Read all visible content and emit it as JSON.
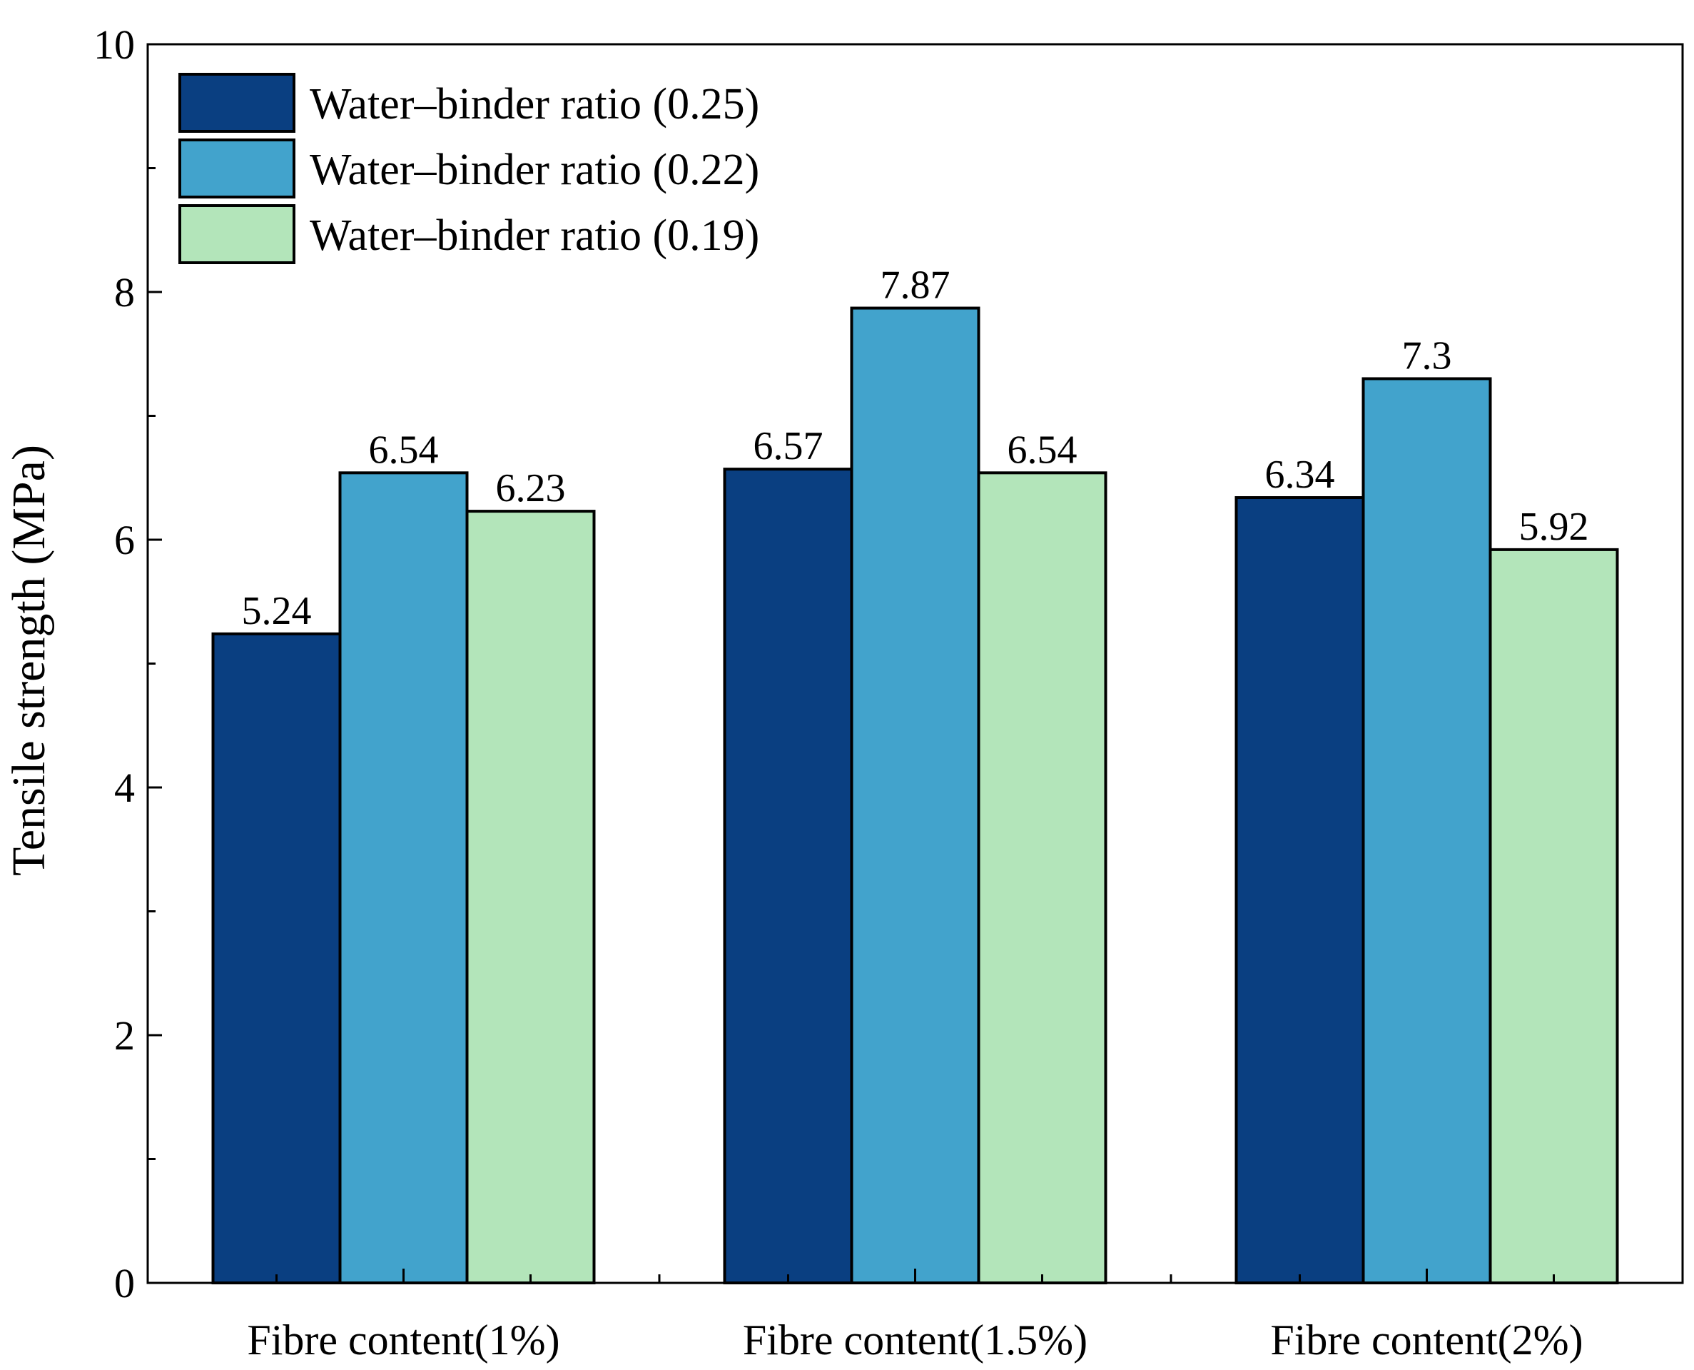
{
  "chart_data": {
    "type": "bar",
    "title": "",
    "xlabel": "",
    "ylabel": "Tensile strength (MPa)",
    "ylim": [
      0,
      10
    ],
    "y_major_ticks": [
      0,
      2,
      4,
      6,
      8,
      10
    ],
    "y_minor_ticks": [
      1,
      3,
      5,
      7,
      9
    ],
    "y_tick_labels": [
      "0",
      "2",
      "4",
      "6",
      "8",
      "10"
    ],
    "categories": [
      "Fibre content(1%)",
      "Fibre content(1.5%)",
      "Fibre content(2%)"
    ],
    "series": [
      {
        "name": "Water–binder ratio (0.25)",
        "color": "#0a3f81",
        "values": [
          5.24,
          6.57,
          6.34
        ],
        "labels": [
          "5.24",
          "6.57",
          "6.34"
        ]
      },
      {
        "name": "Water–binder ratio (0.22)",
        "color": "#42a3cc",
        "values": [
          6.54,
          7.87,
          7.3
        ],
        "labels": [
          "6.54",
          "7.87",
          "7.3"
        ]
      },
      {
        "name": "Water–binder ratio (0.19)",
        "color": "#b3e5ba",
        "values": [
          6.23,
          6.54,
          5.92
        ],
        "labels": [
          "6.23",
          "6.54",
          "5.92"
        ]
      }
    ],
    "legend_position": "top-left"
  }
}
